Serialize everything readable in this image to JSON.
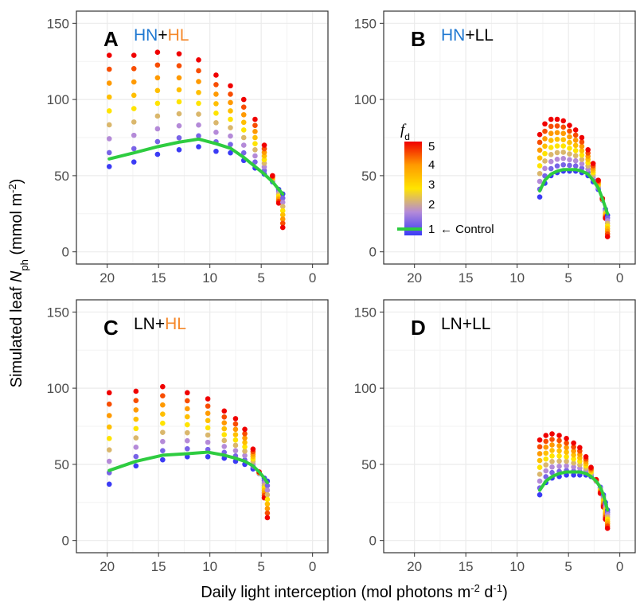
{
  "figure": {
    "xlabel_main": "Daily light interception (mol photons m",
    "xlabel_sup1": "-2",
    "xlabel_mid": " d",
    "xlabel_sup2": "-1",
    "xlabel_end": ")",
    "ylabel_main": "Simulated leaf ",
    "ylabel_var": "N",
    "ylabel_sub": "ph",
    "ylabel_mid": " (mmol m",
    "ylabel_sup": "-2",
    "ylabel_end": ")"
  },
  "legend": {
    "title_var": "f",
    "title_sub": "d",
    "ticks": [
      "5",
      "4",
      "3",
      "2",
      "1"
    ],
    "control_label": "← Control"
  },
  "colors": {
    "control_line": "#2ecc40",
    "gradient": [
      "#3b3bf5",
      "#b48ad8",
      "#ffe400",
      "#ff9a00",
      "#f00000"
    ],
    "HN": "#1f78d1",
    "HL": "#f5882a",
    "panel_border": "#333333",
    "grid": "#ebebeb"
  },
  "panels": [
    {
      "letter": "A",
      "title": [
        {
          "text": "HN",
          "color": "#1f78d1"
        },
        {
          "text": "+",
          "color": "#000000"
        },
        {
          "text": "HL",
          "color": "#f5882a"
        }
      ]
    },
    {
      "letter": "B",
      "title": [
        {
          "text": "HN",
          "color": "#1f78d1"
        },
        {
          "text": "+LL",
          "color": "#000000"
        }
      ]
    },
    {
      "letter": "C",
      "title": [
        {
          "text": "LN+",
          "color": "#000000"
        },
        {
          "text": "HL",
          "color": "#f5882a"
        }
      ]
    },
    {
      "letter": "D",
      "title": [
        {
          "text": "LN+LL",
          "color": "#000000"
        }
      ]
    }
  ],
  "chart_data": [
    {
      "type": "scatter",
      "panel": "A",
      "xlim": [
        23,
        -1.5
      ],
      "ylim": [
        -8,
        158
      ],
      "x_ticks": [
        20,
        15,
        10,
        5,
        0
      ],
      "y_ticks": [
        0,
        50,
        100,
        150
      ],
      "grid": true,
      "series": [
        {
          "x": [
            19.8,
            17.4,
            15.1,
            13.0,
            11.1,
            9.4,
            8.0,
            6.7,
            5.6,
            4.7,
            3.9,
            3.3,
            2.9
          ],
          "bottom": [
            56,
            59,
            64,
            67,
            69,
            66,
            65,
            60,
            55,
            51,
            46,
            41,
            38
          ],
          "top": [
            129,
            129,
            131,
            130,
            126,
            116,
            109,
            100,
            87,
            70,
            50,
            32,
            16
          ],
          "control": [
            61,
            65,
            69,
            72,
            74,
            71,
            68,
            62,
            56,
            51,
            46,
            41,
            38
          ]
        }
      ]
    },
    {
      "type": "scatter",
      "panel": "B",
      "xlim": [
        23,
        -1.5
      ],
      "ylim": [
        -8,
        158
      ],
      "x_ticks": [
        20,
        15,
        10,
        5,
        0
      ],
      "y_ticks": [
        0,
        50,
        100,
        150
      ],
      "grid": true,
      "series": [
        {
          "x": [
            7.8,
            7.3,
            6.7,
            6.1,
            5.5,
            4.9,
            4.3,
            3.7,
            3.1,
            2.6,
            2.1,
            1.7,
            1.4,
            1.2
          ],
          "bottom": [
            36,
            45,
            50,
            52,
            53,
            53,
            53,
            52,
            50,
            46,
            41,
            34,
            28,
            24
          ],
          "top": [
            77,
            84,
            87,
            87,
            86,
            83,
            80,
            75,
            67,
            58,
            47,
            35,
            22,
            10
          ],
          "control": [
            40,
            47,
            51,
            53,
            54,
            54,
            54,
            53,
            51,
            47,
            42,
            35,
            29,
            25
          ]
        }
      ]
    },
    {
      "type": "scatter",
      "panel": "C",
      "xlim": [
        23,
        -1.5
      ],
      "ylim": [
        -8,
        158
      ],
      "x_ticks": [
        20,
        15,
        10,
        5,
        0
      ],
      "y_ticks": [
        0,
        50,
        100,
        150
      ],
      "grid": true,
      "series": [
        {
          "x": [
            19.8,
            17.2,
            14.6,
            12.2,
            10.2,
            8.6,
            7.5,
            6.6,
            5.8,
            5.2,
            4.7,
            4.4
          ],
          "bottom": [
            37,
            49,
            53,
            55,
            55,
            54,
            52,
            50,
            47,
            44,
            41,
            39
          ],
          "top": [
            97,
            98,
            101,
            97,
            93,
            85,
            80,
            73,
            60,
            45,
            28,
            15
          ],
          "control": [
            46,
            52,
            56,
            57,
            58,
            56,
            54,
            52,
            49,
            45,
            41,
            38
          ]
        }
      ]
    },
    {
      "type": "scatter",
      "panel": "D",
      "xlim": [
        23,
        -1.5
      ],
      "ylim": [
        -8,
        158
      ],
      "x_ticks": [
        20,
        15,
        10,
        5,
        0
      ],
      "y_ticks": [
        0,
        50,
        100,
        150
      ],
      "grid": true,
      "series": [
        {
          "x": [
            7.8,
            7.2,
            6.6,
            5.9,
            5.2,
            4.5,
            3.9,
            3.3,
            2.8,
            2.3,
            1.9,
            1.6,
            1.4,
            1.2
          ],
          "bottom": [
            30,
            38,
            41,
            42,
            43,
            43,
            43,
            43,
            42,
            39,
            35,
            30,
            25,
            20
          ],
          "top": [
            66,
            69,
            70,
            69,
            67,
            64,
            61,
            55,
            48,
            40,
            31,
            22,
            14,
            8
          ],
          "control": [
            33,
            39,
            42,
            44,
            45,
            45,
            45,
            44,
            42,
            39,
            35,
            30,
            25,
            20
          ]
        }
      ]
    }
  ]
}
